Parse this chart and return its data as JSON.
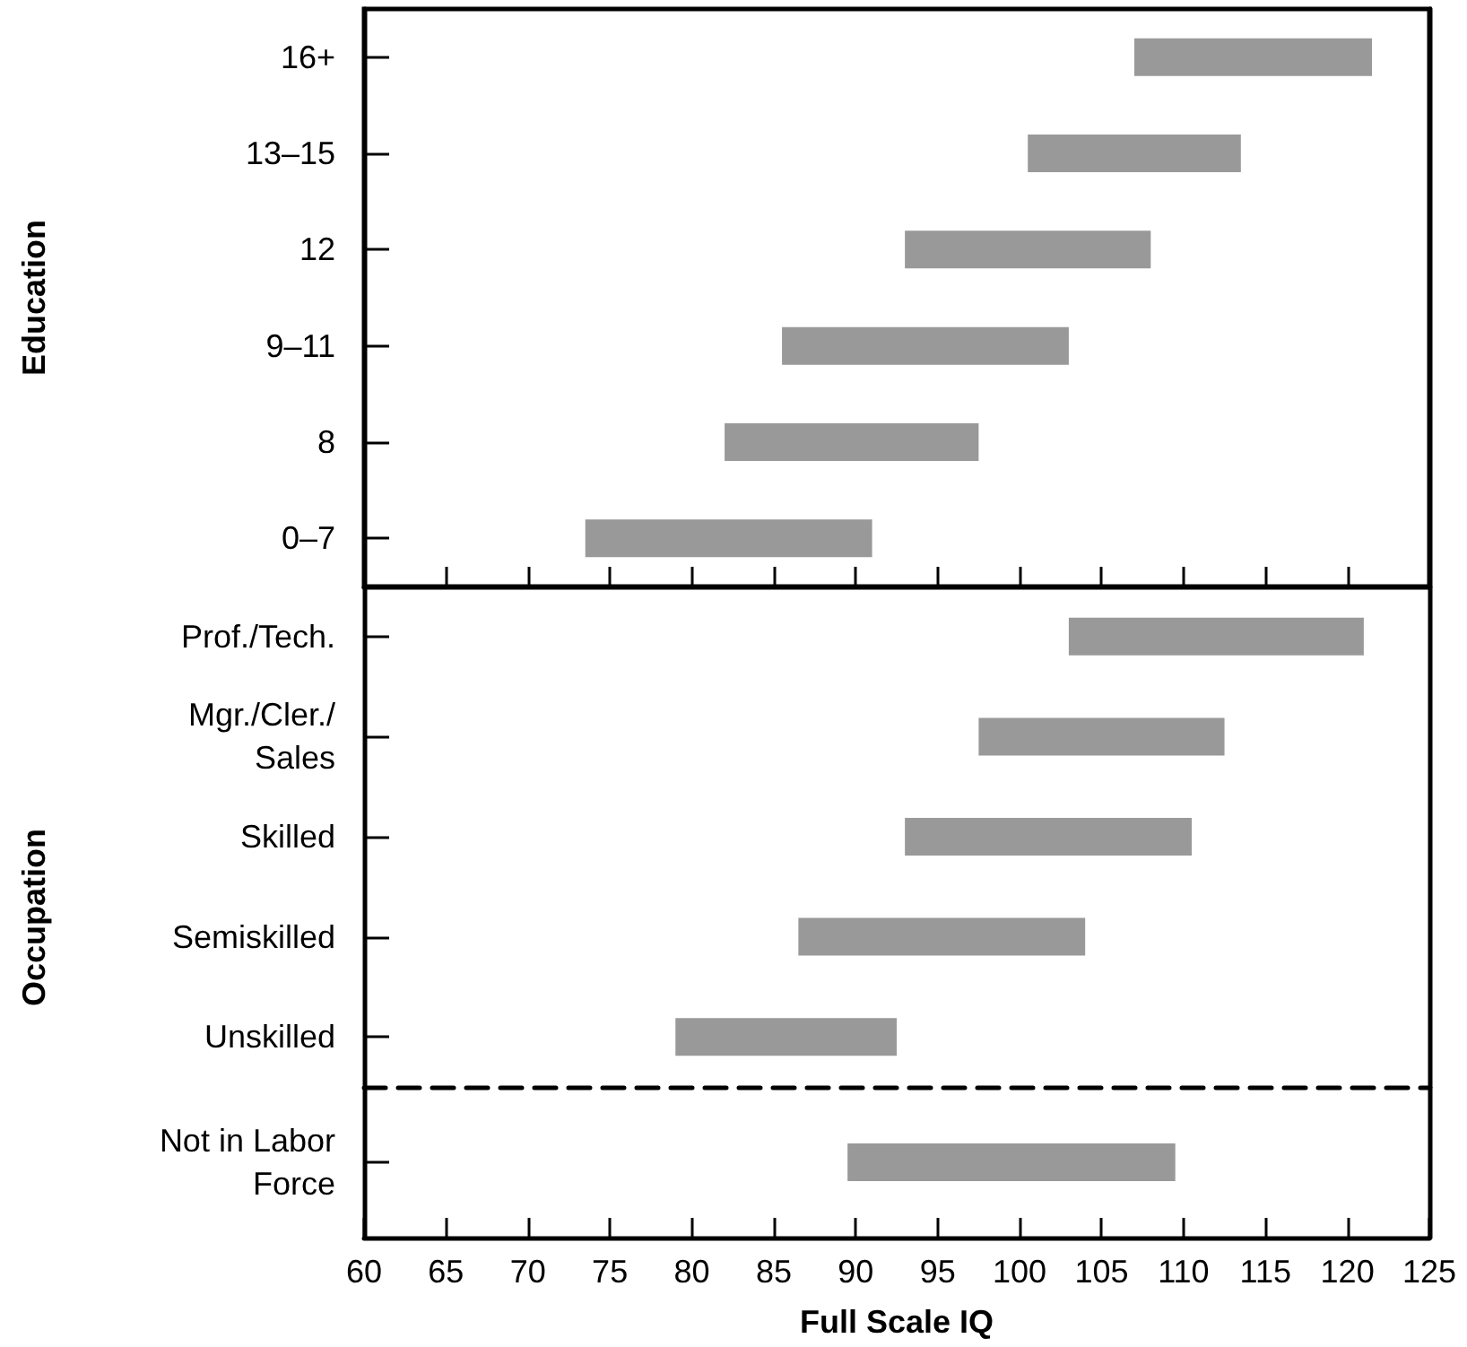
{
  "chart_data": [
    {
      "type": "bar",
      "orientation": "horizontal",
      "ylabel": "Education",
      "categories": [
        "16+",
        "13–15",
        "12",
        "9–11",
        "8",
        "0–7"
      ],
      "base": [
        107,
        100.5,
        93,
        85.5,
        82,
        73.5
      ],
      "values": [
        14.5,
        13,
        15,
        17.5,
        15.5,
        17.5
      ],
      "color": "#999999",
      "xlim": [
        60,
        125
      ],
      "xticks": [
        60,
        65,
        70,
        75,
        80,
        85,
        90,
        95,
        100,
        105,
        110,
        115,
        120,
        125
      ],
      "tick_labels": "y"
    },
    {
      "type": "bar",
      "orientation": "horizontal",
      "ylabel": "Occupation",
      "categories": [
        "Prof./Tech.",
        "Mgr./Cler./\nSales",
        "Skilled",
        "Semiskilled",
        "Unskilled"
      ],
      "base": [
        103,
        97.5,
        93,
        86.5,
        79
      ],
      "values": [
        18,
        15,
        17.5,
        17.5,
        13.5
      ],
      "color": "#999999",
      "xlim": [
        60,
        125
      ],
      "tick_labels": "y"
    },
    {
      "type": "bar",
      "orientation": "horizontal",
      "xlabel": "Full Scale IQ",
      "categories": [
        "Not in Labor\nForce"
      ],
      "base": [
        89.5
      ],
      "values": [
        20
      ],
      "color": "#999999",
      "xlim": [
        60,
        125
      ],
      "xticks": [
        60,
        65,
        70,
        75,
        80,
        85,
        90,
        95,
        100,
        105,
        110,
        115,
        120,
        125
      ]
    }
  ]
}
